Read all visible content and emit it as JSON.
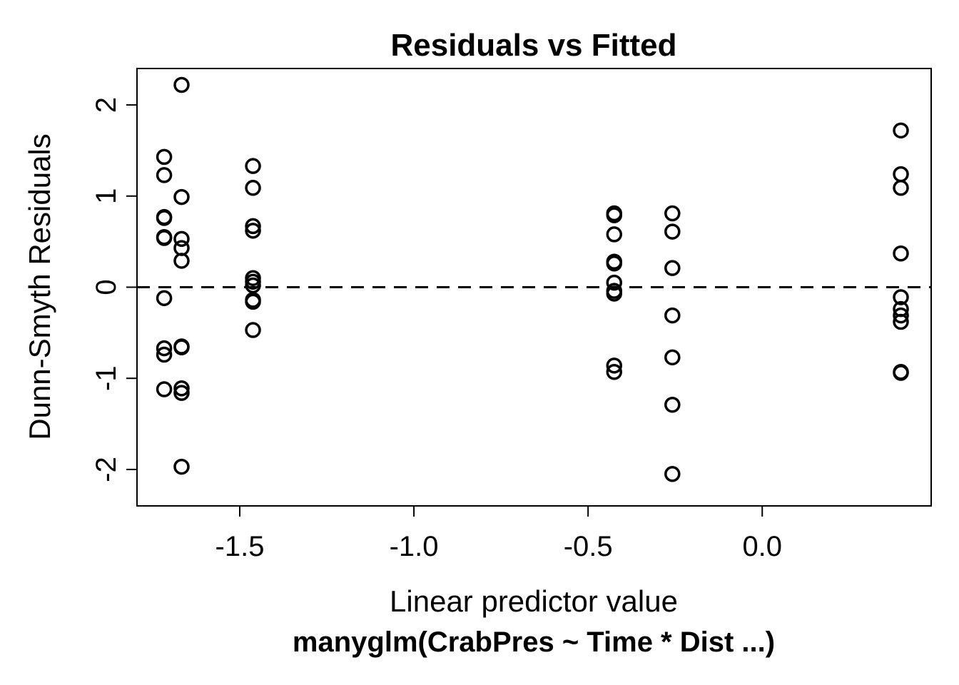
{
  "chart_data": {
    "type": "scatter",
    "title": "Residuals vs Fitted",
    "xlabel": "Linear predictor value",
    "sublabel": "manyglm(CrabPres ~ Time * Dist ...)",
    "ylabel": "Dunn-Smyth Residuals",
    "xlim": [
      -1.795,
      0.485
    ],
    "ylim": [
      -2.4,
      2.4
    ],
    "grid": false,
    "x_ticks": [
      -1.5,
      -1.0,
      -0.5,
      0.0
    ],
    "x_tick_labels": [
      "-1.5",
      "-1.0",
      "-0.5",
      "0.0"
    ],
    "y_ticks": [
      -2,
      -1,
      0,
      1,
      2
    ],
    "y_tick_labels": [
      "-2",
      "-1",
      "0",
      "1",
      "2"
    ],
    "reference_line": {
      "y": 0,
      "style": "dashed"
    },
    "points": [
      {
        "x": -1.717,
        "y": 1.43
      },
      {
        "x": -1.717,
        "y": 1.23
      },
      {
        "x": -1.717,
        "y": 0.77
      },
      {
        "x": -1.717,
        "y": 0.76
      },
      {
        "x": -1.717,
        "y": 0.55
      },
      {
        "x": -1.717,
        "y": 0.54
      },
      {
        "x": -1.717,
        "y": -0.12
      },
      {
        "x": -1.717,
        "y": -0.67
      },
      {
        "x": -1.717,
        "y": -0.74
      },
      {
        "x": -1.717,
        "y": -1.12
      },
      {
        "x": -1.667,
        "y": 2.22
      },
      {
        "x": -1.667,
        "y": 0.99
      },
      {
        "x": -1.667,
        "y": 0.53
      },
      {
        "x": -1.667,
        "y": 0.43
      },
      {
        "x": -1.667,
        "y": 0.29
      },
      {
        "x": -1.667,
        "y": -0.65
      },
      {
        "x": -1.667,
        "y": -0.66
      },
      {
        "x": -1.667,
        "y": -1.11
      },
      {
        "x": -1.667,
        "y": -1.16
      },
      {
        "x": -1.667,
        "y": -1.97
      },
      {
        "x": -1.462,
        "y": 1.33
      },
      {
        "x": -1.462,
        "y": 1.09
      },
      {
        "x": -1.462,
        "y": 0.67
      },
      {
        "x": -1.462,
        "y": 0.62
      },
      {
        "x": -1.462,
        "y": 0.1
      },
      {
        "x": -1.462,
        "y": 0.06
      },
      {
        "x": -1.462,
        "y": 0.02
      },
      {
        "x": -1.462,
        "y": -0.14
      },
      {
        "x": -1.462,
        "y": -0.16
      },
      {
        "x": -1.462,
        "y": -0.47
      },
      {
        "x": -0.425,
        "y": 0.81
      },
      {
        "x": -0.425,
        "y": 0.79
      },
      {
        "x": -0.425,
        "y": 0.58
      },
      {
        "x": -0.425,
        "y": 0.28
      },
      {
        "x": -0.425,
        "y": 0.26
      },
      {
        "x": -0.425,
        "y": 0.05
      },
      {
        "x": -0.425,
        "y": -0.04
      },
      {
        "x": -0.425,
        "y": -0.07
      },
      {
        "x": -0.425,
        "y": -0.86
      },
      {
        "x": -0.425,
        "y": -0.93
      },
      {
        "x": -0.258,
        "y": 0.81
      },
      {
        "x": -0.258,
        "y": 0.61
      },
      {
        "x": -0.258,
        "y": 0.21
      },
      {
        "x": -0.258,
        "y": -0.31
      },
      {
        "x": -0.258,
        "y": -0.77
      },
      {
        "x": -0.258,
        "y": -1.29
      },
      {
        "x": -0.258,
        "y": -2.05
      },
      {
        "x": 0.398,
        "y": 1.72
      },
      {
        "x": 0.398,
        "y": 1.24
      },
      {
        "x": 0.398,
        "y": 1.09
      },
      {
        "x": 0.398,
        "y": 0.37
      },
      {
        "x": 0.398,
        "y": -0.11
      },
      {
        "x": 0.398,
        "y": -0.24
      },
      {
        "x": 0.398,
        "y": -0.31
      },
      {
        "x": 0.398,
        "y": -0.38
      },
      {
        "x": 0.398,
        "y": -0.93
      },
      {
        "x": 0.398,
        "y": -0.94
      }
    ]
  }
}
